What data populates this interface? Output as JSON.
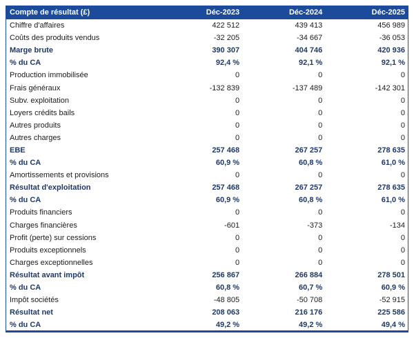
{
  "table": {
    "title": "Compte de résultat (£)",
    "header": {
      "label": "Compte de résultat (£)",
      "columns": [
        "Déc-2023",
        "Déc-2024",
        "Déc-2025"
      ]
    },
    "rows": [
      {
        "label": "Chiffre d'affaires",
        "values": [
          "422 512",
          "439 413",
          "456 989"
        ],
        "bold": false
      },
      {
        "label": "Coûts des produits vendus",
        "values": [
          "-32 205",
          "-34 667",
          "-36 053"
        ],
        "bold": false
      },
      {
        "label": "Marge brute",
        "values": [
          "390 307",
          "404 746",
          "420 936"
        ],
        "bold": true
      },
      {
        "label": "% du CA",
        "values": [
          "92,4 %",
          "92,1 %",
          "92,1 %"
        ],
        "bold": true
      },
      {
        "label": "Production immobilisée",
        "values": [
          "0",
          "0",
          "0"
        ],
        "bold": false
      },
      {
        "label": "Frais généraux",
        "values": [
          "-132 839",
          "-137 489",
          "-142 301"
        ],
        "bold": false
      },
      {
        "label": "Subv. exploitation",
        "values": [
          "0",
          "0",
          "0"
        ],
        "bold": false
      },
      {
        "label": "Loyers crédits bails",
        "values": [
          "0",
          "0",
          "0"
        ],
        "bold": false
      },
      {
        "label": "Autres produits",
        "values": [
          "0",
          "0",
          "0"
        ],
        "bold": false
      },
      {
        "label": "Autres charges",
        "values": [
          "0",
          "0",
          "0"
        ],
        "bold": false
      },
      {
        "label": "EBE",
        "values": [
          "257 468",
          "267 257",
          "278 635"
        ],
        "bold": true
      },
      {
        "label": "% du CA",
        "values": [
          "60,9 %",
          "60,8 %",
          "61,0 %"
        ],
        "bold": true
      },
      {
        "label": "Amortissements et provisions",
        "values": [
          "0",
          "0",
          "0"
        ],
        "bold": false
      },
      {
        "label": "Résultat d'exploitation",
        "values": [
          "257 468",
          "267 257",
          "278 635"
        ],
        "bold": true
      },
      {
        "label": "% du CA",
        "values": [
          "60,9 %",
          "60,8 %",
          "61,0 %"
        ],
        "bold": true
      },
      {
        "label": "Produits financiers",
        "values": [
          "0",
          "0",
          "0"
        ],
        "bold": false
      },
      {
        "label": "Charges financières",
        "values": [
          "-601",
          "-373",
          "-134"
        ],
        "bold": false
      },
      {
        "label": "Profit (perte) sur cessions",
        "values": [
          "0",
          "0",
          "0"
        ],
        "bold": false
      },
      {
        "label": "Produits exceptionnels",
        "values": [
          "0",
          "0",
          "0"
        ],
        "bold": false
      },
      {
        "label": "Charges exceptionnelles",
        "values": [
          "0",
          "0",
          "0"
        ],
        "bold": false
      },
      {
        "label": "Résultat avant impôt",
        "values": [
          "256 867",
          "266 884",
          "278 501"
        ],
        "bold": true
      },
      {
        "label": "% du CA",
        "values": [
          "60,8 %",
          "60,7 %",
          "60,9 %"
        ],
        "bold": true
      },
      {
        "label": "Impôt sociétés",
        "values": [
          "-48 805",
          "-50 708",
          "-52 915"
        ],
        "bold": false
      },
      {
        "label": "Résultat net",
        "values": [
          "208 063",
          "216 176",
          "225 586"
        ],
        "bold": true
      },
      {
        "label": "% du CA",
        "values": [
          "49,2 %",
          "49,2 %",
          "49,4 %"
        ],
        "bold": true
      }
    ]
  },
  "colors": {
    "header_bg": "#1c4b9c",
    "header_text": "#ffffff",
    "bold_text": "#1f3864",
    "body_text": "#1a1a1a",
    "border": "#1c4b9c"
  }
}
